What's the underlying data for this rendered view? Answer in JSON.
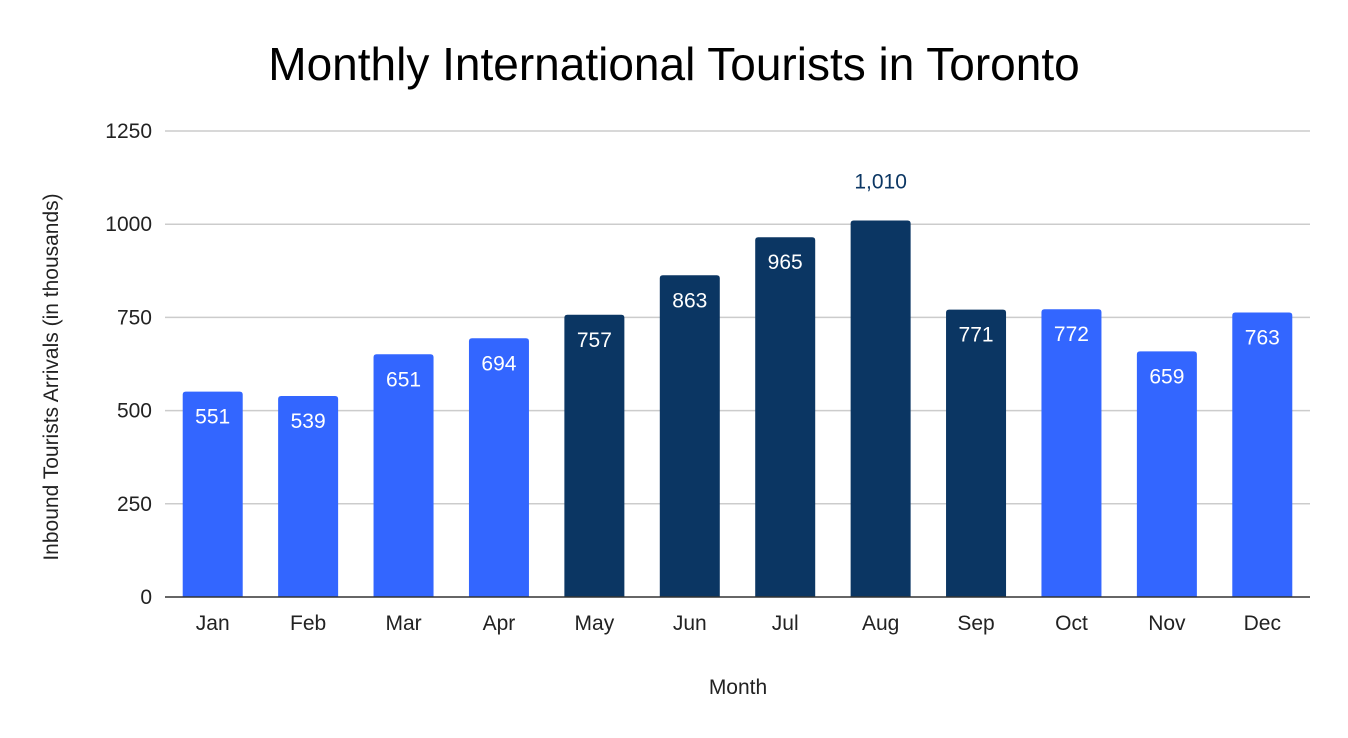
{
  "chart_data": {
    "type": "bar",
    "title": "Monthly International Tourists in Toronto",
    "xlabel": "Month",
    "ylabel": "Inbound Tourists Arrivals (in thousands)",
    "categories": [
      "Jan",
      "Feb",
      "Mar",
      "Apr",
      "May",
      "Jun",
      "Jul",
      "Aug",
      "Sep",
      "Oct",
      "Nov",
      "Dec"
    ],
    "values": [
      551,
      539,
      651,
      694,
      757,
      863,
      965,
      1010,
      771,
      772,
      659,
      763
    ],
    "value_labels": [
      "551",
      "539",
      "651",
      "694",
      "757",
      "863",
      "965",
      "1,010",
      "771",
      "772",
      "659",
      "763"
    ],
    "ylim": [
      0,
      1250
    ],
    "yticks": [
      0,
      250,
      500,
      750,
      1000,
      1250
    ],
    "grid": true,
    "legend": "none",
    "colors": {
      "light_bar": "#3366ff",
      "dark_bar": "#0b3663"
    },
    "bar_color_keys": [
      "light_bar",
      "light_bar",
      "light_bar",
      "light_bar",
      "dark_bar",
      "dark_bar",
      "dark_bar",
      "dark_bar",
      "dark_bar",
      "light_bar",
      "light_bar",
      "light_bar"
    ],
    "outside_label_indices": [
      7
    ]
  }
}
